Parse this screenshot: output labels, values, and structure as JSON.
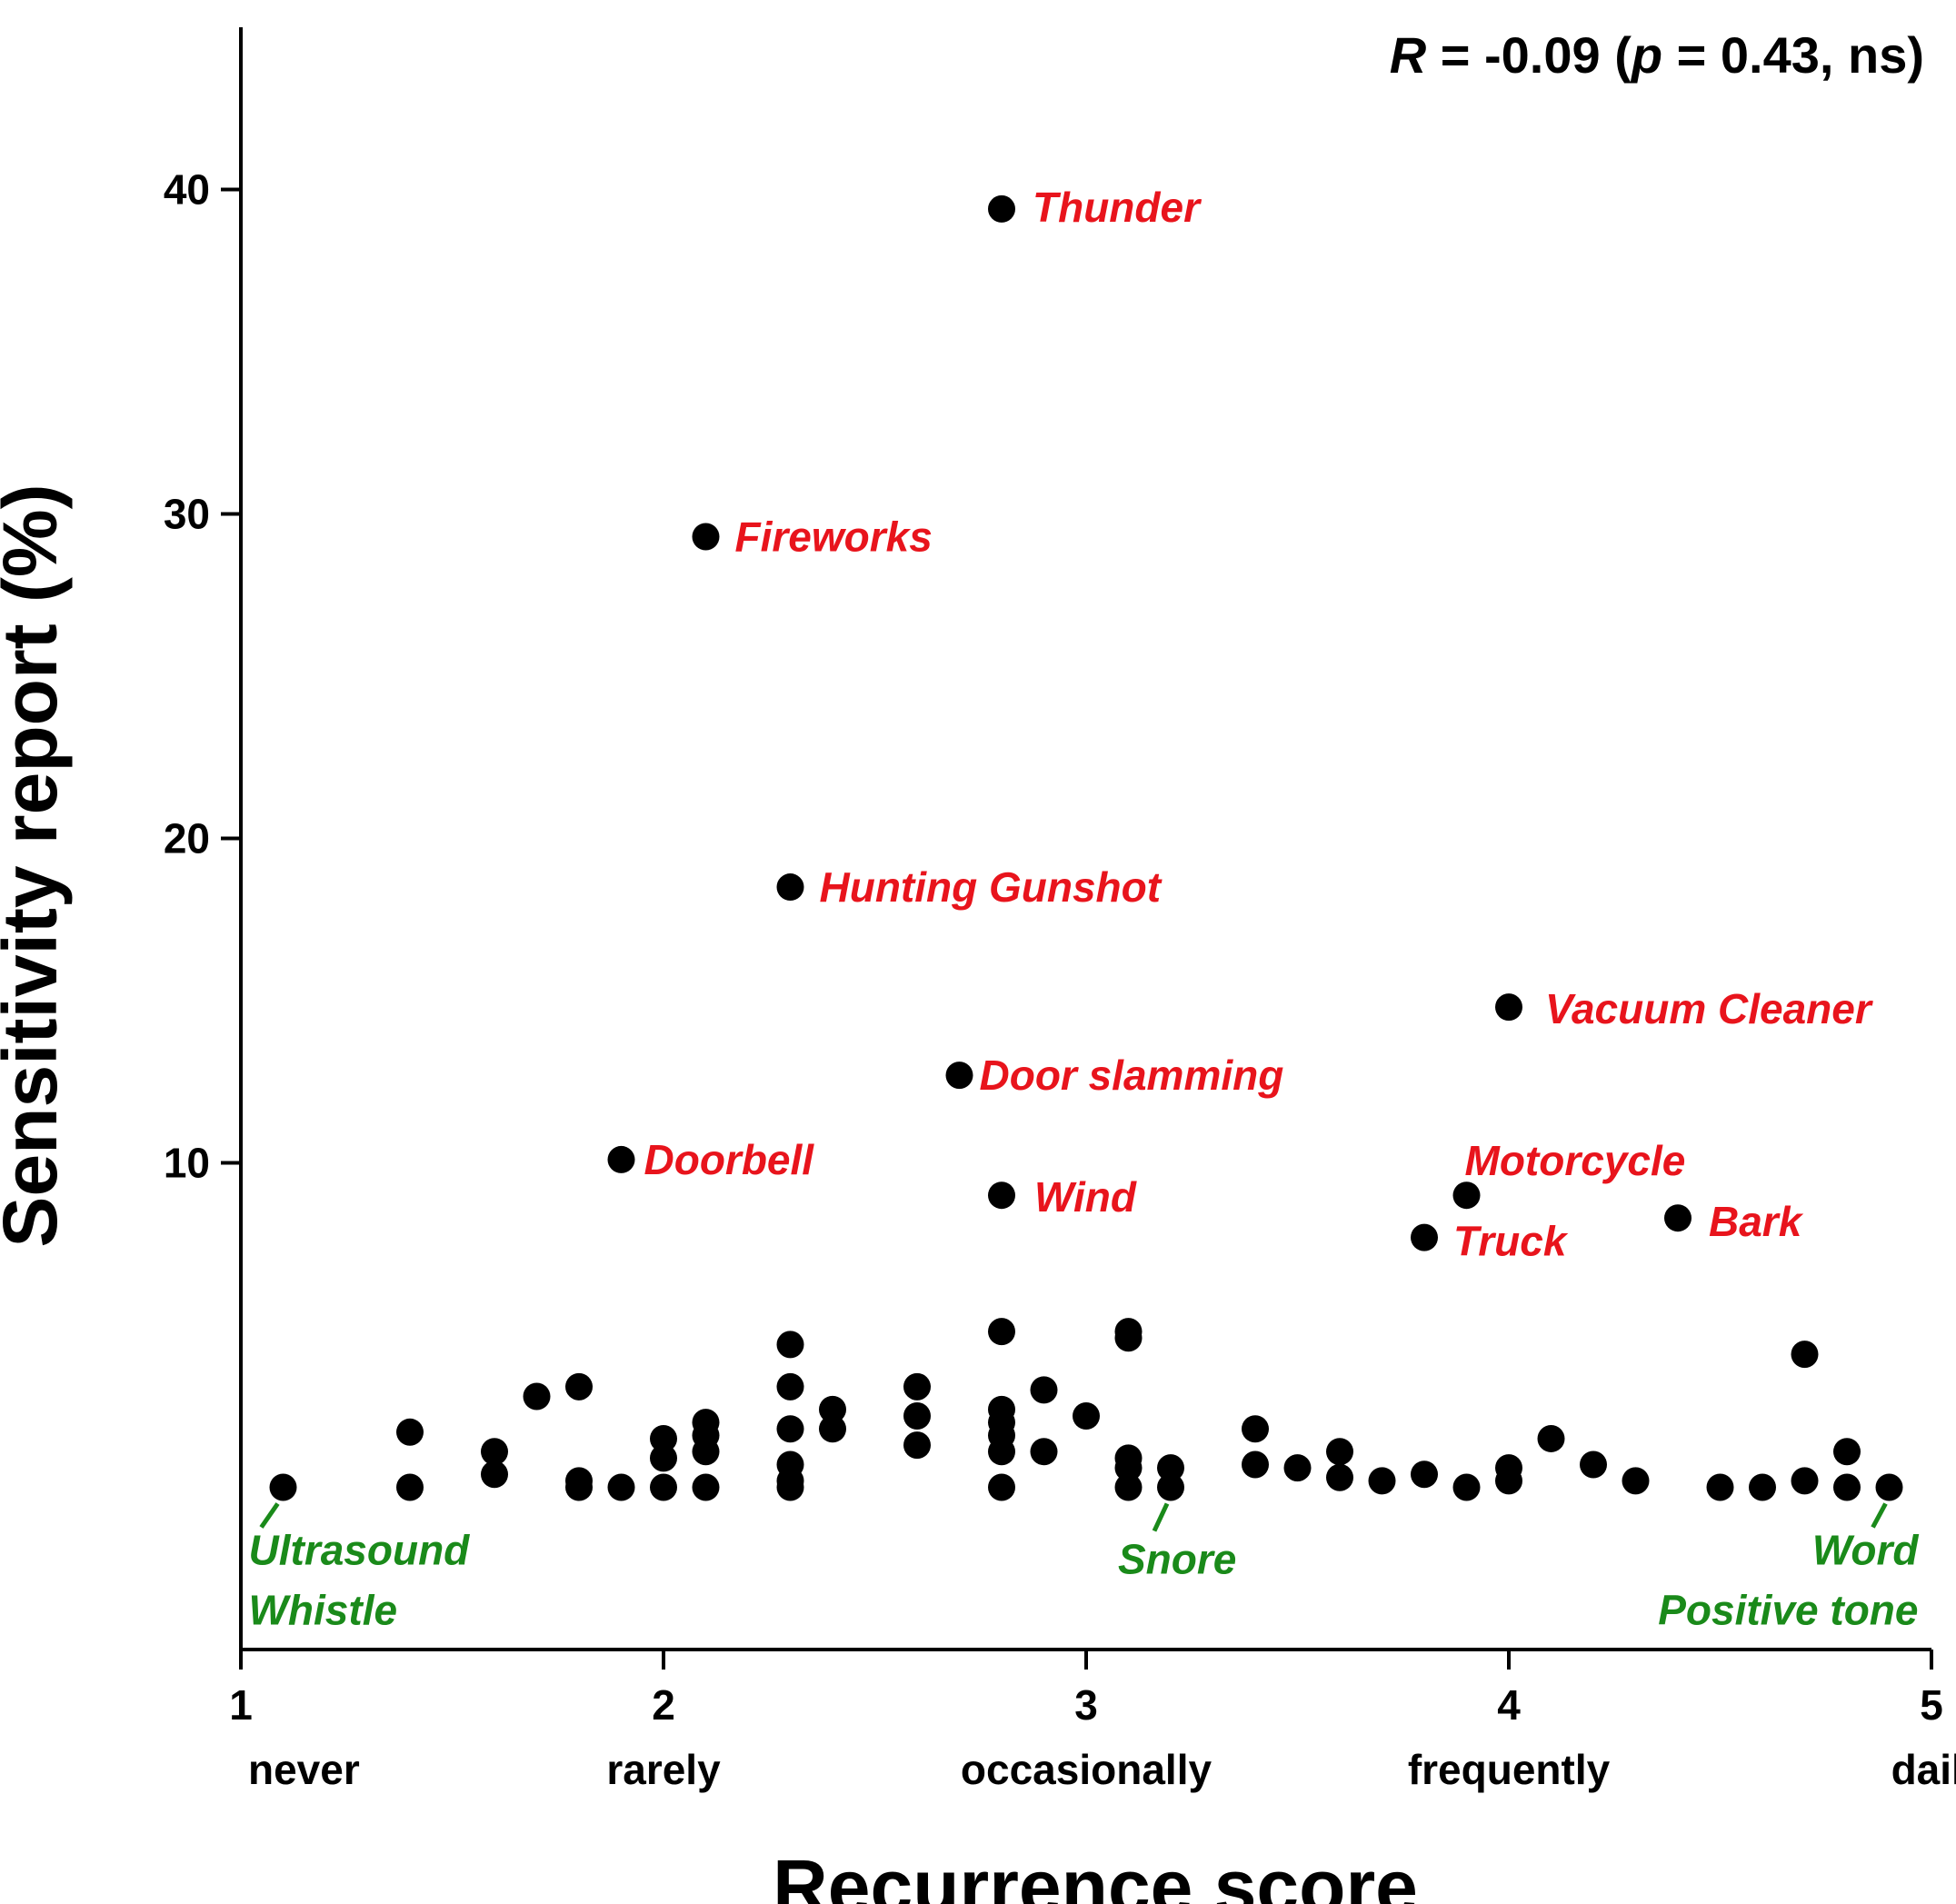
{
  "chart_data": {
    "type": "scatter",
    "xlabel": "Recurrence score",
    "ylabel": "Sensitivity report (%)",
    "xlim": [
      1,
      5
    ],
    "ylim": [
      -5,
      45
    ],
    "x_ticks": [
      1,
      2,
      3,
      4,
      5
    ],
    "x_tick_labels": [
      "1",
      "2",
      "3",
      "4",
      "5"
    ],
    "x_category_labels": [
      "never",
      "rarely",
      "occasionally",
      "frequently",
      "daily"
    ],
    "y_ticks": [
      10,
      20,
      30,
      40
    ],
    "y_tick_labels": [
      "10",
      "20",
      "30",
      "40"
    ],
    "statistic": {
      "r_symbol": "R",
      "r_text": " = -0.09 (",
      "p_symbol": "p",
      "p_text": " = 0.43, ns)"
    },
    "colors": {
      "points": "#000000",
      "high_label": "#e8141c",
      "low_label": "#1a8a1a"
    },
    "annotations_high": [
      {
        "label": "Thunder",
        "x": 2.8,
        "y": 39.4
      },
      {
        "label": "Fireworks",
        "x": 2.1,
        "y": 29.3
      },
      {
        "label": "Hunting Gunshot",
        "x": 2.3,
        "y": 18.5
      },
      {
        "label": "Vacuum Cleaner",
        "x": 4.0,
        "y": 14.8
      },
      {
        "label": "Door slamming",
        "x": 2.7,
        "y": 12.7
      },
      {
        "label": "Doorbell",
        "x": 1.9,
        "y": 10.1
      },
      {
        "label": "Wind",
        "x": 2.8,
        "y": 9.0
      },
      {
        "label": "Motorcycle",
        "x": 3.9,
        "y": 9.0
      },
      {
        "label": "Truck",
        "x": 3.8,
        "y": 7.7
      },
      {
        "label": "Bark",
        "x": 4.4,
        "y": 8.3
      }
    ],
    "annotations_low": [
      {
        "label_lines": [
          "Ultrasound",
          "Whistle"
        ],
        "x": 1.1,
        "y": 0
      },
      {
        "label_lines": [
          "Snore"
        ],
        "x": 3.2,
        "y": 0
      },
      {
        "label_lines": [
          "Word",
          "Positive tone"
        ],
        "x": 4.9,
        "y": 0
      }
    ],
    "points": [
      [
        2.8,
        39.4
      ],
      [
        2.1,
        29.3
      ],
      [
        2.3,
        18.5
      ],
      [
        4.0,
        14.8
      ],
      [
        2.7,
        12.7
      ],
      [
        1.9,
        10.1
      ],
      [
        2.8,
        9.0
      ],
      [
        3.9,
        9.0
      ],
      [
        3.8,
        7.7
      ],
      [
        4.4,
        8.3
      ],
      [
        1.1,
        0.0
      ],
      [
        1.4,
        1.7
      ],
      [
        1.4,
        0.0
      ],
      [
        1.6,
        1.1
      ],
      [
        1.6,
        0.4
      ],
      [
        1.7,
        2.8
      ],
      [
        1.8,
        3.1
      ],
      [
        1.8,
        0.2
      ],
      [
        1.8,
        0.0
      ],
      [
        1.9,
        0.0
      ],
      [
        2.0,
        1.5
      ],
      [
        2.0,
        0.9
      ],
      [
        2.0,
        0.0
      ],
      [
        2.1,
        2.0
      ],
      [
        2.1,
        1.6
      ],
      [
        2.1,
        1.1
      ],
      [
        2.1,
        0.0
      ],
      [
        2.3,
        4.4
      ],
      [
        2.3,
        3.1
      ],
      [
        2.3,
        1.8
      ],
      [
        2.3,
        0.7
      ],
      [
        2.3,
        0.2
      ],
      [
        2.3,
        0.0
      ],
      [
        2.4,
        2.4
      ],
      [
        2.4,
        1.8
      ],
      [
        2.6,
        3.1
      ],
      [
        2.6,
        2.2
      ],
      [
        2.6,
        1.3
      ],
      [
        2.8,
        4.8
      ],
      [
        2.8,
        2.4
      ],
      [
        2.8,
        2.0
      ],
      [
        2.8,
        1.6
      ],
      [
        2.8,
        1.1
      ],
      [
        2.8,
        0.0
      ],
      [
        2.9,
        3.0
      ],
      [
        2.9,
        1.1
      ],
      [
        3.0,
        2.2
      ],
      [
        3.1,
        4.8
      ],
      [
        3.1,
        4.6
      ],
      [
        3.1,
        0.9
      ],
      [
        3.1,
        0.6
      ],
      [
        3.1,
        0.0
      ],
      [
        3.2,
        0.6
      ],
      [
        3.2,
        0.0
      ],
      [
        3.4,
        1.8
      ],
      [
        3.4,
        0.7
      ],
      [
        3.5,
        0.6
      ],
      [
        3.6,
        1.1
      ],
      [
        3.6,
        0.3
      ],
      [
        3.7,
        0.2
      ],
      [
        3.8,
        0.4
      ],
      [
        3.9,
        0.0
      ],
      [
        4.0,
        0.6
      ],
      [
        4.0,
        0.2
      ],
      [
        4.1,
        1.5
      ],
      [
        4.2,
        0.7
      ],
      [
        4.3,
        0.2
      ],
      [
        4.5,
        0.0
      ],
      [
        4.6,
        0.0
      ],
      [
        4.7,
        4.1
      ],
      [
        4.7,
        0.2
      ],
      [
        4.8,
        1.1
      ],
      [
        4.8,
        0.0
      ],
      [
        4.9,
        0.0
      ]
    ]
  }
}
